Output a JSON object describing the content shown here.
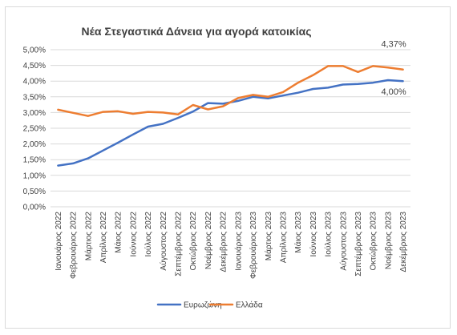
{
  "chart_data": {
    "type": "line",
    "title": "Νέα Στεγαστικά Δάνεια για αγορά κατοικίας",
    "categories": [
      "Ιανουάριος 2022",
      "Φεβρουάριος 2022",
      "Μάρτιος 2022",
      "Απρίλιος 2022",
      "Μάιος 2022",
      "Ιούνιος 2022",
      "Ιούλιος 2022",
      "Αύγουστος 2022",
      "Σεπτέμβριος 2022",
      "Οκτώβριος 2022",
      "Νοέμβριος 2022",
      "Δεκέμβριος 2022",
      "Ιανουάριος 2023",
      "Φεβρουάριος 2023",
      "Μάρτιος 2023",
      "Απρίλιος 2023",
      "Μάιος 2023",
      "Ιούνιος 2023",
      "Ιούλιος 2023",
      "Αύγουστος 2023",
      "Σεπτέμβριος 2023",
      "Οκτώβριος 2023",
      "Νοέμβριος 2023",
      "Δεκέμβριος 2023"
    ],
    "yticks": [
      "0,00%",
      "0,50%",
      "1,00%",
      "1,50%",
      "2,00%",
      "2,50%",
      "3,00%",
      "3,50%",
      "4,00%",
      "4,50%",
      "5,00%"
    ],
    "ylim": [
      0,
      5
    ],
    "grid": true,
    "legend_position": "bottom",
    "series": [
      {
        "name": "Ευρωζώνη",
        "color": "#4472c4",
        "values": [
          1.31,
          1.38,
          1.54,
          1.79,
          2.04,
          2.3,
          2.55,
          2.64,
          2.83,
          3.03,
          3.3,
          3.28,
          3.37,
          3.5,
          3.45,
          3.54,
          3.63,
          3.75,
          3.79,
          3.89,
          3.91,
          3.95,
          4.03,
          4.0
        ],
        "end_label": "4,00%"
      },
      {
        "name": "Ελλάδα",
        "color": "#ed7d31",
        "values": [
          3.09,
          2.99,
          2.89,
          3.02,
          3.04,
          2.96,
          3.02,
          3.0,
          2.94,
          3.24,
          3.1,
          3.2,
          3.46,
          3.56,
          3.5,
          3.65,
          3.95,
          4.19,
          4.48,
          4.48,
          4.29,
          4.48,
          4.43,
          4.37
        ],
        "end_label": "4,37%"
      }
    ]
  }
}
